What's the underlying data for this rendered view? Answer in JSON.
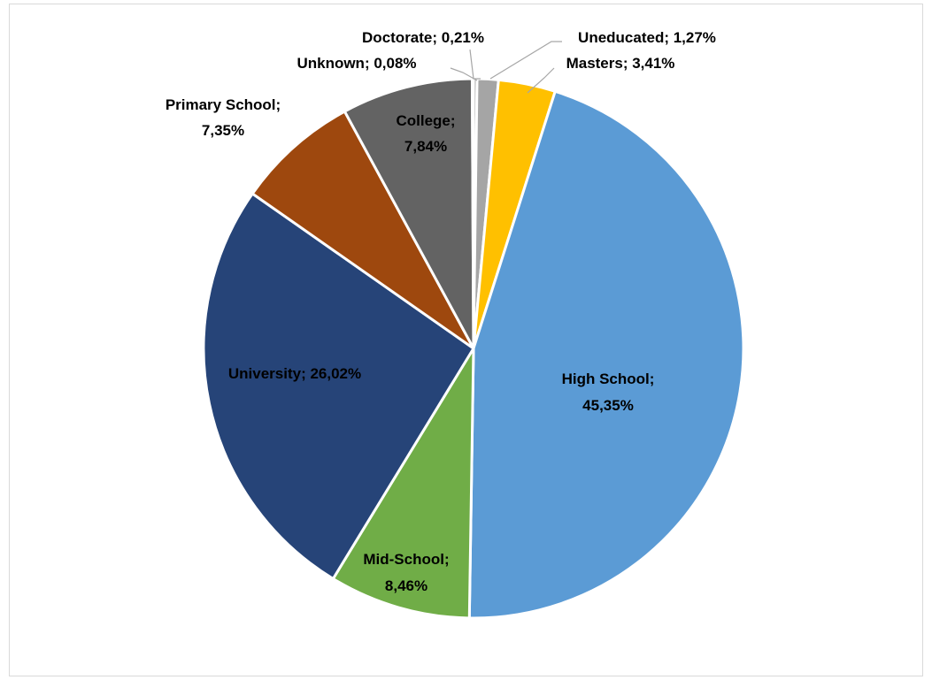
{
  "chart_data": {
    "type": "pie",
    "title": "",
    "slices": [
      {
        "name": "Doctorate",
        "value": 0.21,
        "label": "Doctorate; 0,21%",
        "color": "#a5a5a5"
      },
      {
        "name": "Uneducated",
        "value": 1.27,
        "label": "Uneducated; 1,27%",
        "color": "#a5a5a5"
      },
      {
        "name": "Masters",
        "value": 3.41,
        "label": "Masters; 3,41%",
        "color": "#ffc000"
      },
      {
        "name": "High School",
        "value": 45.35,
        "label_lines": [
          "High School;",
          "45,35%"
        ],
        "color": "#5b9bd5"
      },
      {
        "name": "Mid-School",
        "value": 8.46,
        "label_lines": [
          "Mid-School;",
          "8,46%"
        ],
        "color": "#70ad47"
      },
      {
        "name": "University",
        "value": 26.02,
        "label": "University; 26,02%",
        "color": "#264478"
      },
      {
        "name": "Primary School",
        "value": 7.35,
        "label_lines": [
          "Primary School;",
          "7,35%"
        ],
        "color": "#9e480e"
      },
      {
        "name": "College",
        "value": 7.84,
        "label_lines": [
          "College;",
          "7,84%"
        ],
        "color": "#636363"
      },
      {
        "name": "Unknown",
        "value": 0.08,
        "label": "Unknown; 0,08%",
        "color": "#997300"
      }
    ],
    "legend": "none"
  }
}
